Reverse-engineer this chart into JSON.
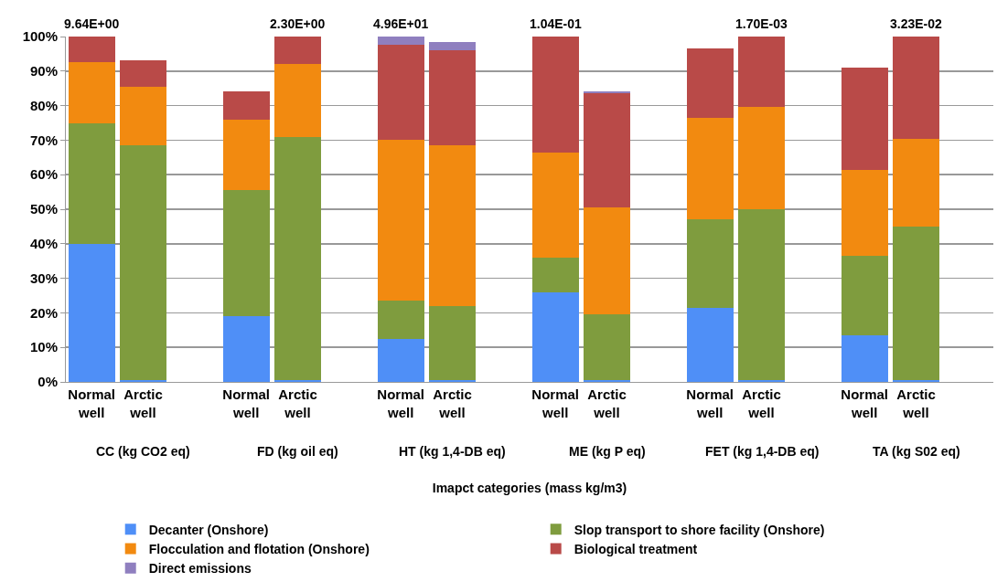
{
  "chart_data": {
    "type": "bar",
    "stacked": true,
    "xlabel": "Imapct categories (mass kg/m3)",
    "categories": [
      "Normal well",
      "Arctic well",
      null,
      "Normal well",
      "Arctic well",
      null,
      "Normal well",
      "Arctic well",
      null,
      "Normal well",
      "Arctic well",
      null,
      "Normal well",
      "Arctic well",
      null,
      "Normal well",
      "Arctic well",
      null
    ],
    "series": [
      {
        "name": "Decanter (Onshore)",
        "color": "#4f8ff7",
        "values": [
          40,
          0.5,
          null,
          19,
          0.5,
          null,
          12.5,
          0.5,
          null,
          26,
          0.5,
          null,
          21.5,
          0.5,
          null,
          13.5,
          0.5,
          null
        ]
      },
      {
        "name": "Slop transport to shore facility (Onshore)",
        "color": "#7f9c3e",
        "values": [
          35,
          68,
          null,
          36.5,
          70.5,
          null,
          11,
          21.5,
          null,
          10,
          19,
          null,
          25.5,
          49.5,
          null,
          23,
          44.5,
          null
        ]
      },
      {
        "name": "Flocculation and flotation (Onshore)",
        "color": "#f28a10",
        "values": [
          17.5,
          17,
          null,
          20.5,
          21,
          null,
          46.5,
          46.5,
          null,
          30.5,
          31,
          null,
          29.5,
          29.5,
          null,
          25,
          25.5,
          null
        ]
      },
      {
        "name": "Biological treatment",
        "color": "#b94a48",
        "values": [
          7.5,
          7.5,
          null,
          8,
          8,
          null,
          27.5,
          27.5,
          null,
          33.5,
          33,
          null,
          20,
          20.5,
          null,
          29.5,
          29.5,
          null
        ]
      },
      {
        "name": "Direct emissions",
        "color": "#8f7fbf",
        "values": [
          0,
          0,
          null,
          0,
          0,
          null,
          2.5,
          2.5,
          null,
          0,
          0.5,
          null,
          0,
          0,
          null,
          0,
          0,
          null
        ]
      }
    ],
    "ylim": [
      0,
      100
    ],
    "yticks": [
      {
        "value": 0,
        "label": "0%"
      },
      {
        "value": 10,
        "label": "10%"
      },
      {
        "value": 20,
        "label": "20%"
      },
      {
        "value": 30,
        "label": "30%"
      },
      {
        "value": 40,
        "label": "40%"
      },
      {
        "value": 50,
        "label": "50%"
      },
      {
        "value": 60,
        "label": "60%"
      },
      {
        "value": 70,
        "label": "70%"
      },
      {
        "value": 80,
        "label": "80%"
      },
      {
        "value": 90,
        "label": "90%"
      },
      {
        "value": 100,
        "label": "100%"
      }
    ],
    "grid": "y",
    "legend": "bottom",
    "annotations": [
      "9.64E+00",
      "2.30E+00",
      "4.96E+01",
      "1.04E-01",
      "1.70E-03",
      "3.23E-02",
      "CC (kg CO2 eq)",
      "FD (kg oil eq)",
      "HT (kg 1,4-DB eq)",
      "ME (kg P eq)",
      "FET (kg 1,4-DB eq)",
      "TA (kg S02 eq)"
    ]
  }
}
